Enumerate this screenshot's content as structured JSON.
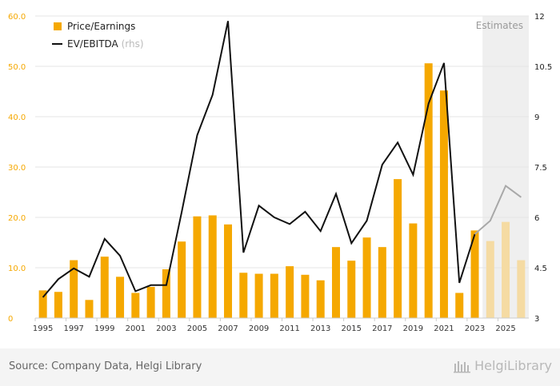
{
  "chart_data": {
    "type": "bar",
    "title": "",
    "estimates_label": "Estimates",
    "estimate_start_year": 2024,
    "x_tick_labels": [
      "1995",
      "1997",
      "1999",
      "2001",
      "2003",
      "2005",
      "2007",
      "2009",
      "2011",
      "2013",
      "2015",
      "2017",
      "2019",
      "2021",
      "2023",
      "2025"
    ],
    "y_left": {
      "ticks": [
        "0",
        "10.0",
        "20.0",
        "30.0",
        "40.0",
        "50.0",
        "60.0"
      ],
      "min": 0,
      "max": 60
    },
    "y_right": {
      "ticks": [
        "3",
        "4.5",
        "6",
        "7.5",
        "9",
        "10.5",
        "12"
      ],
      "min": 3,
      "max": 12
    },
    "legend": {
      "placement": "top-left"
    },
    "categories": [
      1995,
      1996,
      1997,
      1998,
      1999,
      2000,
      2001,
      2002,
      2003,
      2004,
      2005,
      2006,
      2007,
      2008,
      2009,
      2010,
      2011,
      2012,
      2013,
      2014,
      2015,
      2016,
      2017,
      2018,
      2019,
      2020,
      2021,
      2022,
      2023,
      2024,
      2025,
      2026
    ],
    "series": [
      {
        "name": "Price/Earnings",
        "kind": "bar",
        "axis": "left",
        "color": "#f5a800",
        "estimate_color": "#f5dba3",
        "values": [
          5.5,
          5.2,
          11.5,
          3.6,
          12.2,
          8.2,
          5.0,
          6.2,
          9.7,
          15.2,
          20.2,
          20.4,
          18.6,
          9.0,
          8.8,
          8.8,
          10.3,
          8.6,
          7.5,
          14.1,
          11.4,
          16.0,
          14.1,
          27.6,
          18.8,
          50.6,
          45.2,
          5.0,
          17.4,
          15.3,
          19.1,
          11.5
        ]
      },
      {
        "name": "EV/EBITDA",
        "name_suffix": "(rhs)",
        "kind": "line",
        "axis": "right",
        "color": "#111111",
        "estimate_color": "#a8a8a8",
        "values": [
          3.62,
          4.16,
          4.48,
          4.23,
          5.36,
          4.86,
          3.8,
          3.98,
          3.98,
          6.17,
          8.45,
          9.65,
          11.85,
          4.95,
          6.35,
          6.0,
          5.8,
          6.17,
          5.59,
          6.7,
          5.23,
          5.9,
          7.57,
          8.23,
          7.27,
          9.39,
          10.6,
          4.05,
          5.5,
          5.9,
          6.94,
          6.6
        ]
      }
    ]
  },
  "footer": {
    "source": "Source: Company Data, Helgi Library",
    "brand": "HelgiLibrary"
  },
  "colors": {
    "grid": "#e6e6e6",
    "axis_text": "#f5a800",
    "right_axis_text": "#222222",
    "estimate_band": "#efefef"
  }
}
